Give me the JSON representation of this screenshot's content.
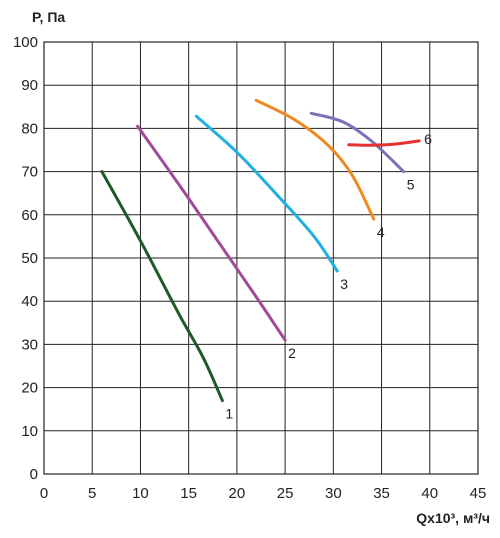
{
  "chart_data": {
    "type": "line",
    "title": "",
    "ylabel": "P, Па",
    "xlabel": "Qx10³, м³/ч",
    "xlim": [
      0,
      45
    ],
    "ylim": [
      0,
      100
    ],
    "x_ticks": [
      0,
      5,
      10,
      15,
      20,
      25,
      30,
      35,
      40,
      45
    ],
    "y_ticks": [
      0,
      10,
      20,
      30,
      40,
      50,
      60,
      70,
      80,
      90,
      100
    ],
    "grid": true,
    "legend": "none",
    "series": [
      {
        "name": "1",
        "color": "#1e5a23",
        "x": [
          6,
          10,
          14,
          16.5,
          18.5
        ],
        "y": [
          70,
          54,
          37,
          27,
          17
        ]
      },
      {
        "name": "2",
        "color": "#a24a9a",
        "x": [
          9.7,
          14,
          18,
          22,
          25
        ],
        "y": [
          80.5,
          67,
          54,
          41,
          31
        ]
      },
      {
        "name": "3",
        "color": "#1fb0e0",
        "x": [
          15.8,
          20,
          24,
          28,
          30.4
        ],
        "y": [
          82.8,
          74.5,
          65,
          55,
          47
        ]
      },
      {
        "name": "4",
        "color": "#ef8a22",
        "x": [
          22,
          26,
          29.5,
          32,
          34.2
        ],
        "y": [
          86.5,
          82,
          76,
          69,
          59
        ]
      },
      {
        "name": "5",
        "color": "#7a72b8",
        "x": [
          27.7,
          31,
          34,
          37.3
        ],
        "y": [
          83.5,
          81.5,
          77,
          70
        ]
      },
      {
        "name": "6",
        "color": "#e53030",
        "x": [
          31.6,
          34,
          36.5,
          38.9
        ],
        "y": [
          76.2,
          76.1,
          76.4,
          77.1
        ]
      }
    ]
  }
}
